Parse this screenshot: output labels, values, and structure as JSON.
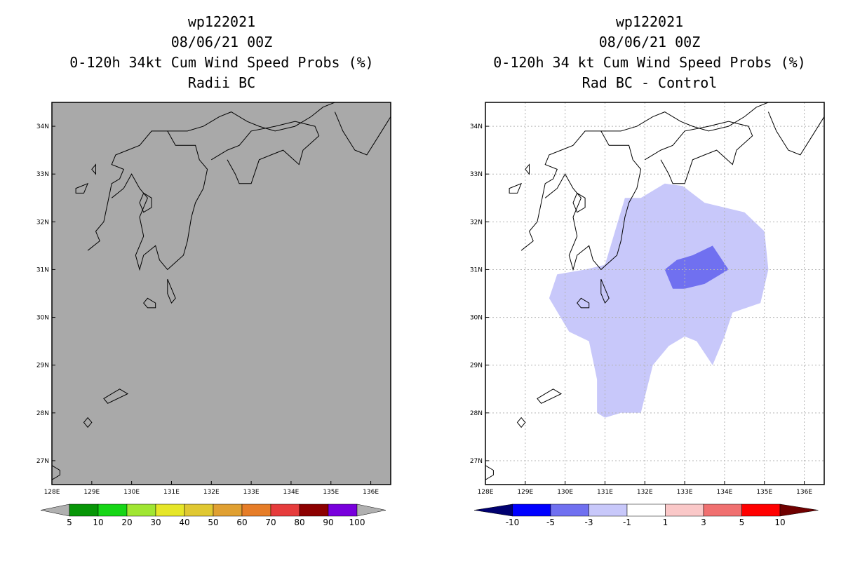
{
  "left": {
    "title_lines": [
      "wp122021",
      "08/06/21 00Z",
      "0-120h 34kt Cum Wind Speed Probs (%)",
      "Radii BC"
    ],
    "colorbar": {
      "labels": [
        "5",
        "10",
        "20",
        "30",
        "40",
        "50",
        "60",
        "70",
        "80",
        "90",
        "100"
      ],
      "colors": [
        "#b0b0b0",
        "#079607",
        "#16d616",
        "#a0e632",
        "#e6e628",
        "#e0c832",
        "#e0a032",
        "#e67d28",
        "#e63c3c",
        "#8c0000",
        "#7800dc",
        "#b0b0b0"
      ]
    }
  },
  "right": {
    "title_lines": [
      "wp122021",
      "08/06/21 00Z",
      "0-120h 34 kt Cum Wind Speed Probs (%)",
      "Rad BC - Control"
    ],
    "colorbar": {
      "labels": [
        "-10",
        "-5",
        "-3",
        "-1",
        "1",
        "3",
        "5",
        "10"
      ],
      "colors": [
        "#000070",
        "#0000ff",
        "#7070f0",
        "#c8c8fa",
        "#ffffff",
        "#fac8c8",
        "#f07070",
        "#ff0000",
        "#700000"
      ]
    }
  },
  "chart_data": [
    {
      "type": "heatmap",
      "title": "0-120h 34kt Cum Wind Speed Probs (%)",
      "subtitle": "Radii BC",
      "storm": "wp122021",
      "time": "08/06/21 00Z",
      "x_ticks": [
        "128E",
        "129E",
        "130E",
        "131E",
        "132E",
        "133E",
        "134E",
        "135E",
        "136E"
      ],
      "y_ticks": [
        "27N",
        "28N",
        "29N",
        "30N",
        "31N",
        "32N",
        "33N",
        "34N"
      ],
      "xlim": [
        128,
        136.5
      ],
      "ylim": [
        26.5,
        34.5
      ],
      "grid": false,
      "background": "#a9a9a9",
      "levels": [
        5,
        10,
        20,
        30,
        40,
        50,
        60,
        70,
        80,
        90,
        100
      ]
    },
    {
      "type": "heatmap",
      "title": "0-120h 34 kt Cum Wind Speed Probs (%)",
      "subtitle": "Rad BC - Control",
      "storm": "wp122021",
      "time": "08/06/21 00Z",
      "x_ticks": [
        "128E",
        "129E",
        "130E",
        "131E",
        "132E",
        "133E",
        "134E",
        "135E",
        "136E"
      ],
      "y_ticks": [
        "27N",
        "28N",
        "29N",
        "30N",
        "31N",
        "32N",
        "33N",
        "34N"
      ],
      "xlim": [
        128,
        136.5
      ],
      "ylim": [
        26.5,
        34.5
      ],
      "grid": true,
      "levels": [
        -10,
        -5,
        -3,
        -1,
        1,
        3,
        5,
        10
      ],
      "contours": [
        {
          "level": "-3 to -1",
          "color": "#c8c8fa",
          "points": [
            [
              129.6,
              30.4
            ],
            [
              129.8,
              30.9
            ],
            [
              130.5,
              31.0
            ],
            [
              131.0,
              31.1
            ],
            [
              131.5,
              32.5
            ],
            [
              131.9,
              32.5
            ],
            [
              132.5,
              32.8
            ],
            [
              132.95,
              32.75
            ],
            [
              133.5,
              32.4
            ],
            [
              134.5,
              32.2
            ],
            [
              135.0,
              31.8
            ],
            [
              135.1,
              31.0
            ],
            [
              134.9,
              30.3
            ],
            [
              134.2,
              30.1
            ],
            [
              134.0,
              29.6
            ],
            [
              133.7,
              29.0
            ],
            [
              133.3,
              29.5
            ],
            [
              133.0,
              29.6
            ],
            [
              132.6,
              29.4
            ],
            [
              132.2,
              29.0
            ],
            [
              131.9,
              28.0
            ],
            [
              131.4,
              28.0
            ],
            [
              131.0,
              27.9
            ],
            [
              130.8,
              28.0
            ],
            [
              130.8,
              28.7
            ],
            [
              130.6,
              29.5
            ],
            [
              130.1,
              29.7
            ]
          ]
        },
        {
          "level": "-5 to -3",
          "color": "#7070f0",
          "points": [
            [
              132.5,
              31.0
            ],
            [
              132.8,
              31.2
            ],
            [
              133.2,
              31.3
            ],
            [
              133.7,
              31.5
            ],
            [
              134.1,
              31.0
            ],
            [
              133.5,
              30.7
            ],
            [
              133.0,
              30.6
            ],
            [
              132.7,
              30.6
            ]
          ]
        }
      ]
    }
  ]
}
